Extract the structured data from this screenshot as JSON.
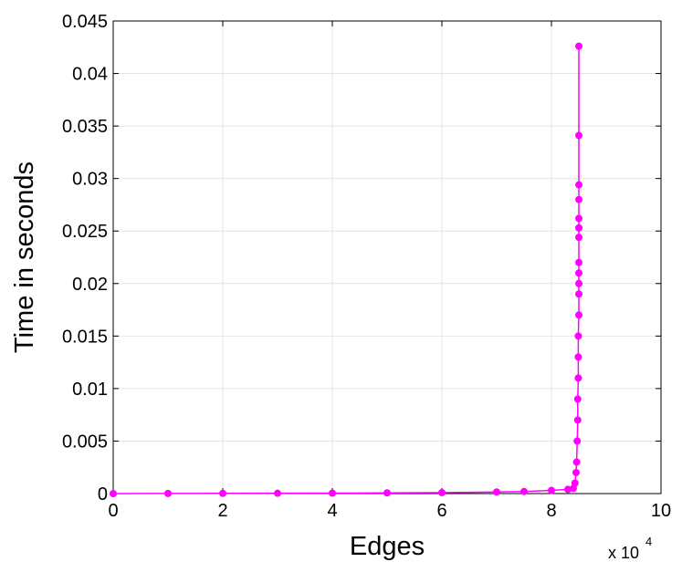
{
  "chart_data": {
    "type": "line",
    "x_label": "Edges",
    "y_label": "Time in seconds",
    "x_multiplier": {
      "base": "x 10",
      "exponent": "4"
    },
    "xlim": [
      0,
      10
    ],
    "xticks": [
      0,
      2,
      4,
      6,
      8,
      10
    ],
    "ylim": [
      0,
      0.045
    ],
    "yticks": [
      0,
      0.005,
      0.01,
      0.015,
      0.02,
      0.025,
      0.03,
      0.035,
      0.04,
      0.045
    ],
    "grid": true,
    "series": [
      {
        "color": "#ff00ff",
        "x": [
          0,
          1,
          2,
          3,
          4,
          5,
          6,
          7,
          7.5,
          8,
          8.3,
          8.4,
          8.43,
          8.45,
          8.46,
          8.47,
          8.48,
          8.48,
          8.49,
          8.49,
          8.49,
          8.5,
          8.5,
          8.5,
          8.5,
          8.5,
          8.5,
          8.5,
          8.5,
          8.5,
          8.5,
          8.5,
          8.5
        ],
        "values": [
          0,
          1e-05,
          2e-05,
          3e-05,
          4e-05,
          6e-05,
          9e-05,
          0.00015,
          0.0002,
          0.0003,
          0.0004,
          0.0005,
          0.001,
          0.002,
          0.003,
          0.005,
          0.007,
          0.009,
          0.011,
          0.013,
          0.015,
          0.017,
          0.019,
          0.02,
          0.021,
          0.022,
          0.0244,
          0.0253,
          0.0262,
          0.028,
          0.0294,
          0.0341,
          0.0426
        ]
      }
    ]
  }
}
